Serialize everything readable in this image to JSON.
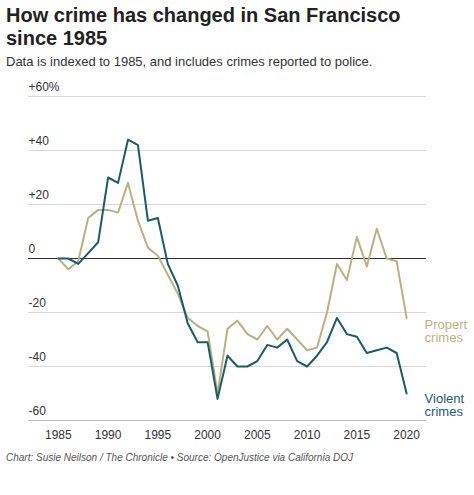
{
  "chart_data": {
    "type": "line",
    "title": "How crime has changed in San Francisco since 1985",
    "subtitle": "Data is indexed to 1985, and includes crimes reported to police.",
    "caption": "Chart: Susie Neilson / The Chronicle • Source: OpenJustice via California DOJ",
    "x": [
      1985,
      1986,
      1987,
      1988,
      1989,
      1990,
      1991,
      1992,
      1993,
      1994,
      1995,
      1996,
      1997,
      1998,
      1999,
      2000,
      2001,
      2002,
      2003,
      2004,
      2005,
      2006,
      2007,
      2008,
      2009,
      2010,
      2011,
      2012,
      2013,
      2014,
      2015,
      2016,
      2017,
      2018,
      2019,
      2020
    ],
    "series": [
      {
        "name": "Property crimes",
        "color": "#b8b283",
        "values": [
          0,
          -4,
          -1,
          15,
          18,
          18,
          17,
          28,
          14,
          4,
          1,
          -6,
          -13,
          -22,
          -25,
          -27,
          -50,
          -26,
          -23,
          -28,
          -30,
          -25,
          -30,
          -26,
          -30,
          -34,
          -33,
          -20,
          -2,
          -8,
          8,
          -3,
          11,
          0,
          -1,
          -22
        ]
      },
      {
        "name": "Violent crimes",
        "color": "#1d5a6c",
        "values": [
          0,
          0,
          -2,
          2,
          6,
          30,
          28,
          44,
          42,
          14,
          15,
          -2,
          -10,
          -24,
          -31,
          -31,
          -52,
          -36,
          -40,
          -40,
          -38,
          -32,
          -33,
          -30,
          -38,
          -40,
          -36,
          -31,
          -22,
          -28,
          -29,
          -35,
          -34,
          -33,
          -35,
          -50
        ]
      }
    ],
    "xlim": [
      1982,
      2022
    ],
    "xticks": [
      1985,
      1990,
      1995,
      2000,
      2005,
      2010,
      2015,
      2020
    ],
    "ylim": [
      -60,
      60
    ],
    "yticks": [
      -60,
      -40,
      -20,
      0,
      {
        "value": 20,
        "label": "+20"
      },
      {
        "value": 40,
        "label": "+40"
      },
      {
        "value": 60,
        "label": "+60%"
      }
    ],
    "grid": true
  }
}
